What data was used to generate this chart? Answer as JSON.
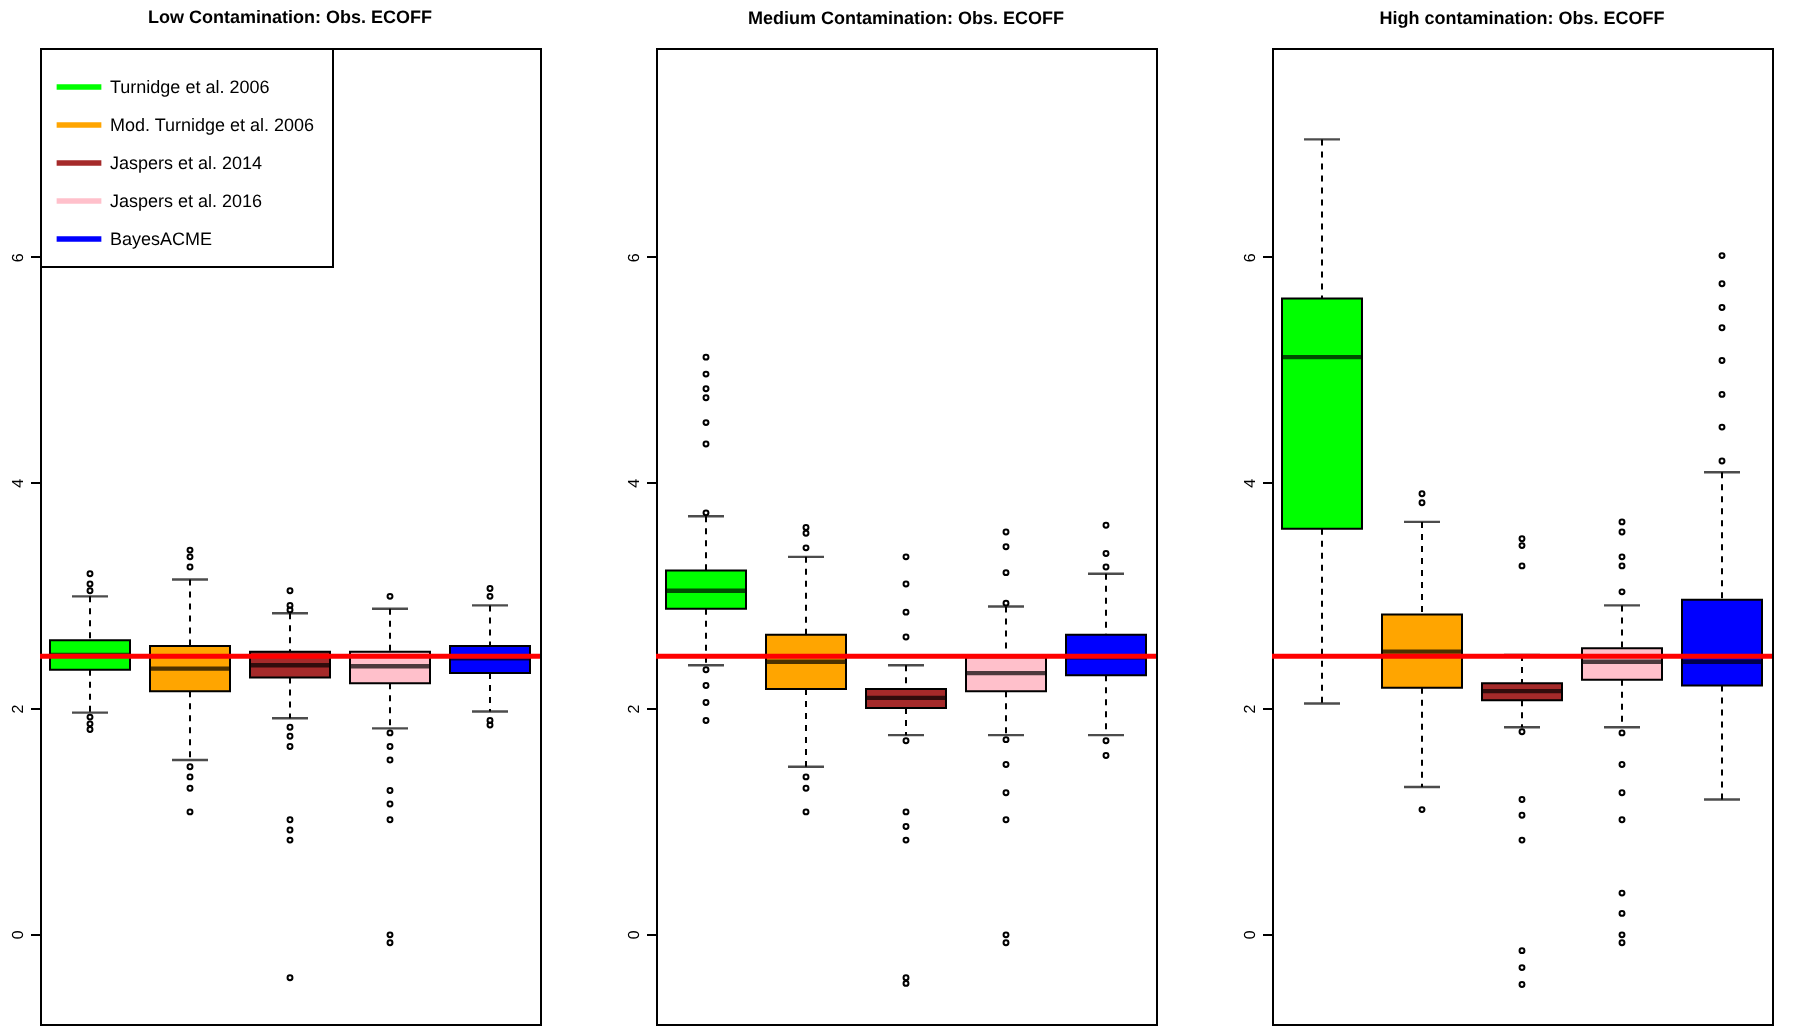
{
  "chart_data": [
    {
      "type": "box",
      "title": "Low Contamination: Obs. ECOFF",
      "categories": [
        null,
        null,
        null,
        null,
        null
      ],
      "ylim": [
        -0.8,
        7.85
      ],
      "yticks": [
        0,
        2,
        4,
        6
      ],
      "tick_labels": "y",
      "legend": "top left",
      "ref_lines": [
        {
          "axis": "y",
          "value": 2.46,
          "color": "#ff0000"
        }
      ],
      "series": [
        {
          "name": "Turnidge et al. 2006",
          "color": "#00ff00",
          "boxes": [
            {
              "low": 1.96,
              "q1": 2.34,
              "median": 2.47,
              "q3": 2.6,
              "high": 2.99,
              "outliers": [
                3.19,
                3.1,
                3.04,
                1.92,
                1.86,
                1.81
              ]
            },
            null,
            null,
            null,
            null
          ]
        },
        {
          "name": "Mod. Turnidge et al. 2006",
          "color": "#ffa500",
          "boxes": [
            null,
            {
              "low": 1.54,
              "q1": 2.15,
              "median": 2.35,
              "q3": 2.55,
              "high": 3.14,
              "outliers": [
                3.4,
                3.34,
                3.25,
                1.48,
                1.39,
                1.29,
                1.08
              ]
            },
            null,
            null,
            null
          ]
        },
        {
          "name": "Jaspers et al. 2014",
          "color": "#a52a2a",
          "boxes": [
            null,
            null,
            {
              "low": 1.91,
              "q1": 2.27,
              "median": 2.38,
              "q3": 2.5,
              "high": 2.84,
              "outliers": [
                3.04,
                2.91,
                2.87,
                1.83,
                1.75,
                1.66,
                1.01,
                0.92,
                0.83,
                -0.39
              ]
            },
            null,
            null
          ]
        },
        {
          "name": "Jaspers et al. 2016",
          "color": "#ffc0cb",
          "boxes": [
            null,
            null,
            null,
            {
              "low": 1.82,
              "q1": 2.22,
              "median": 2.37,
              "q3": 2.5,
              "high": 2.88,
              "outliers": [
                2.99,
                1.78,
                1.66,
                1.54,
                1.27,
                1.15,
                1.01,
                -0.01,
                -0.08
              ]
            },
            null
          ]
        },
        {
          "name": "BayesACME",
          "color": "#0000ff",
          "boxes": [
            null,
            null,
            null,
            null,
            {
              "low": 1.97,
              "q1": 2.31,
              "median": 2.44,
              "q3": 2.55,
              "high": 2.91,
              "outliers": [
                3.06,
                2.99,
                1.89,
                1.85
              ]
            }
          ]
        }
      ]
    },
    {
      "type": "box",
      "title": "Medium Contamination: Obs. ECOFF",
      "categories": [
        null,
        null,
        null,
        null,
        null
      ],
      "ylim": [
        -0.8,
        7.85
      ],
      "yticks": [
        0,
        2,
        4,
        6
      ],
      "tick_labels": "y",
      "ref_lines": [
        {
          "axis": "y",
          "value": 2.46,
          "color": "#ff0000"
        }
      ],
      "series": [
        {
          "color": "#00ff00",
          "boxes": [
            {
              "low": 2.38,
              "q1": 2.88,
              "median": 3.04,
              "q3": 3.22,
              "high": 3.7,
              "outliers": [
                5.11,
                4.96,
                4.83,
                4.75,
                4.53,
                4.34,
                3.73,
                2.34,
                2.2,
                2.05,
                1.89
              ]
            },
            null,
            null,
            null,
            null
          ]
        },
        {
          "color": "#ffa500",
          "boxes": [
            null,
            {
              "low": 1.48,
              "q1": 2.17,
              "median": 2.41,
              "q3": 2.65,
              "high": 3.34,
              "outliers": [
                3.6,
                3.55,
                3.42,
                1.39,
                1.29,
                1.08
              ]
            },
            null,
            null,
            null
          ]
        },
        {
          "color": "#a52a2a",
          "boxes": [
            null,
            null,
            {
              "low": 1.76,
              "q1": 2.0,
              "median": 2.09,
              "q3": 2.17,
              "high": 2.38,
              "outliers": [
                3.34,
                3.1,
                2.85,
                2.63,
                1.71,
                1.08,
                0.95,
                0.83,
                -0.39,
                -0.44
              ]
            },
            null,
            null
          ]
        },
        {
          "color": "#ffc0cb",
          "boxes": [
            null,
            null,
            null,
            {
              "low": 1.76,
              "q1": 2.15,
              "median": 2.31,
              "q3": 2.45,
              "high": 2.9,
              "outliers": [
                3.56,
                3.43,
                3.2,
                2.93,
                1.72,
                1.5,
                1.25,
                1.01,
                -0.01,
                -0.08
              ]
            },
            null
          ]
        },
        {
          "color": "#0000ff",
          "boxes": [
            null,
            null,
            null,
            null,
            {
              "low": 1.76,
              "q1": 2.29,
              "median": 2.45,
              "q3": 2.65,
              "high": 3.19,
              "outliers": [
                3.62,
                3.37,
                3.25,
                1.71,
                1.58
              ]
            }
          ]
        }
      ]
    },
    {
      "type": "box",
      "title": "High contamination: Obs. ECOFF",
      "categories": [
        null,
        null,
        null,
        null,
        null
      ],
      "ylim": [
        -0.8,
        7.85
      ],
      "yticks": [
        0,
        2,
        4,
        6
      ],
      "tick_labels": "y",
      "ref_lines": [
        {
          "axis": "y",
          "value": 2.46,
          "color": "#ff0000"
        }
      ],
      "series": [
        {
          "color": "#00ff00",
          "boxes": [
            {
              "low": 2.04,
              "q1": 3.59,
              "median": 5.11,
              "q3": 5.63,
              "high": 7.04
            },
            null,
            null,
            null,
            null
          ]
        },
        {
          "color": "#ffa500",
          "boxes": [
            null,
            {
              "low": 1.3,
              "q1": 2.18,
              "median": 2.5,
              "q3": 2.83,
              "high": 3.65,
              "outliers": [
                3.9,
                3.82,
                1.1
              ]
            },
            null,
            null,
            null
          ]
        },
        {
          "color": "#a52a2a",
          "boxes": [
            null,
            null,
            {
              "low": 1.83,
              "q1": 2.07,
              "median": 2.15,
              "q3": 2.22,
              "high": 2.47,
              "outliers": [
                3.5,
                3.44,
                3.26,
                1.79,
                1.19,
                1.05,
                0.83,
                -0.15,
                -0.3,
                -0.45
              ]
            },
            null,
            null
          ]
        },
        {
          "color": "#ffc0cb",
          "boxes": [
            null,
            null,
            null,
            {
              "low": 1.83,
              "q1": 2.25,
              "median": 2.41,
              "q3": 2.53,
              "high": 2.91,
              "outliers": [
                3.65,
                3.56,
                3.34,
                3.26,
                3.03,
                1.78,
                1.5,
                1.25,
                1.01,
                0.36,
                0.18,
                -0.01,
                -0.08
              ]
            },
            null
          ]
        },
        {
          "color": "#0000ff",
          "boxes": [
            null,
            null,
            null,
            null,
            {
              "low": 1.19,
              "q1": 2.2,
              "median": 2.41,
              "q3": 2.96,
              "high": 4.09,
              "outliers": [
                6.01,
                5.76,
                5.55,
                5.37,
                5.08,
                4.78,
                4.49,
                4.19
              ]
            }
          ]
        }
      ]
    }
  ]
}
